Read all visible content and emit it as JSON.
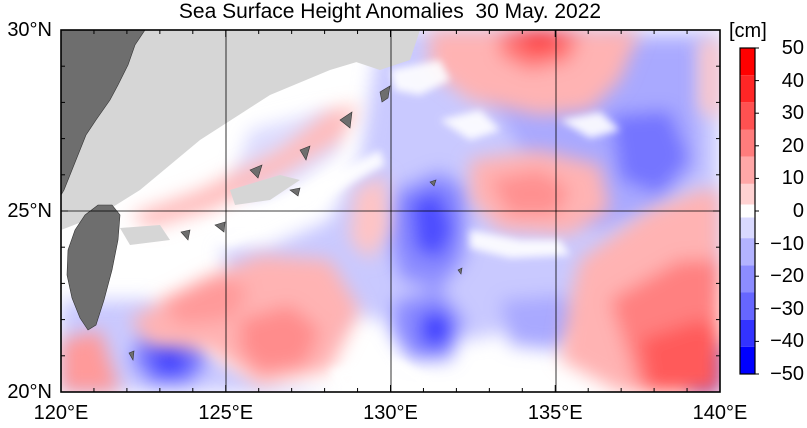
{
  "title": "Sea Surface Height Anomalies  30 May. 2022",
  "axes": {
    "lat_labels": [
      "30°N",
      "25°N",
      "20°N"
    ],
    "lon_labels": [
      "120°E",
      "125°E",
      "130°E",
      "135°E",
      "140°E"
    ],
    "lat_range": [
      20,
      30
    ],
    "lon_range": [
      120,
      140
    ],
    "grid": true
  },
  "colorbar": {
    "unit": "[cm]",
    "range": [
      -50,
      50
    ],
    "tick_labels": [
      "50",
      "40",
      "30",
      "20",
      "10",
      "0",
      "−10",
      "−20",
      "−30",
      "−40",
      "−50"
    ],
    "colors": {
      "positive": [
        "#ffd2d2",
        "#ffa7a7",
        "#ff7c7c",
        "#ff5151",
        "#ff2626",
        "#ff0000"
      ],
      "negative": [
        "#d9d9ff",
        "#b3b3ff",
        "#8c8cff",
        "#6666ff",
        "#3333ff",
        "#0000ff"
      ],
      "land": "#6e6e6e",
      "frame": "#000000"
    }
  }
}
